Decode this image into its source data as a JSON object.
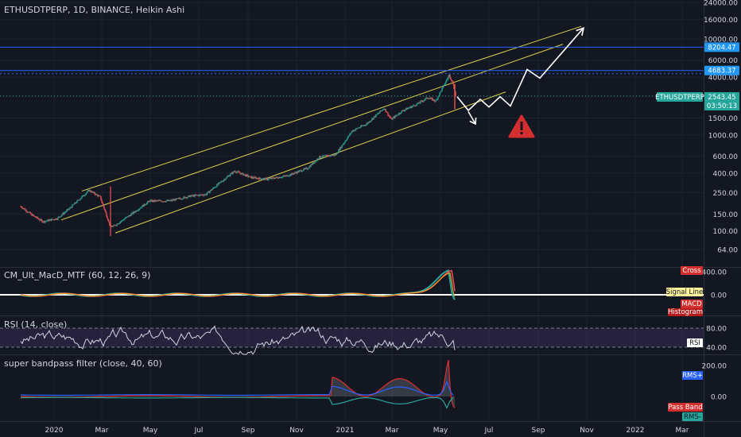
{
  "header": {
    "title": "ETHUSDTPERP, 1D, BINANCE, Heikin Ashi"
  },
  "price_badges": {
    "level_high": "8204.47",
    "level_mid": "4683.37",
    "last_symbol": "ETHUSDTPERP",
    "last_price": "2543.45",
    "countdown": "03:50:13"
  },
  "colors": {
    "background": "#131722",
    "grid": "#1e222d",
    "text": "#d1d4dc",
    "up_candle": "#26a69a",
    "down_candle": "#ef5350",
    "channel_lines": "#e0d24a",
    "level_lines": "#2962ff",
    "badge_blue": "#2196f3",
    "badge_teal": "#26a69a",
    "warning": "#d32f2f",
    "rsi_band": "#7e57c2",
    "rsi_line": "#d1d4dc"
  },
  "x_axis": {
    "labels": [
      "2020",
      "Mar",
      "May",
      "Jul",
      "Sep",
      "Nov",
      "2021",
      "Mar",
      "May",
      "Jul",
      "Sep",
      "Nov",
      "2022",
      "Mar"
    ]
  },
  "panes": {
    "macd": {
      "title": "CM_Ult_MacD_MTF (60, 12, 26, 9)",
      "ticks": [
        "400.00",
        "0.00"
      ],
      "badges": [
        "Cross",
        "Signal Line",
        "MACD",
        "Histogram"
      ]
    },
    "rsi": {
      "title": "RSI (14, close)",
      "ticks": [
        "80.00",
        "40.00"
      ],
      "badge": "RSI"
    },
    "bandpass": {
      "title": "super bandpass filter (close, 40, 60)",
      "ticks": [
        "200.00",
        "0.00"
      ],
      "badges": [
        "RMS+",
        "Pass Band",
        "RMS-"
      ]
    }
  },
  "chart_data": {
    "type": "candlestick",
    "style": "Heikin Ashi",
    "symbol": "ETHUSDTPERP",
    "interval": "1D",
    "exchange": "BINANCE",
    "scale": "log",
    "y_ticks": [
      "24000.00",
      "16000.00",
      "10000.00",
      "6000.00",
      "4000.00",
      "2500.00",
      "1500.00",
      "1000.00",
      "600.00",
      "400.00",
      "250.00",
      "150.00",
      "100.00",
      "64.00"
    ],
    "y_tick_values": [
      24000,
      16000,
      10000,
      6000,
      4000,
      2500,
      1500,
      1000,
      600,
      400,
      250,
      150,
      100,
      64
    ],
    "x_ticks": [
      {
        "label": "2020",
        "date": "2020-01-01"
      },
      {
        "label": "Mar",
        "date": "2020-03-01"
      },
      {
        "label": "May",
        "date": "2020-05-01"
      },
      {
        "label": "Jul",
        "date": "2020-07-01"
      },
      {
        "label": "Sep",
        "date": "2020-09-01"
      },
      {
        "label": "Nov",
        "date": "2020-11-01"
      },
      {
        "label": "2021",
        "date": "2021-01-01"
      },
      {
        "label": "Mar",
        "date": "2021-03-01"
      },
      {
        "label": "May",
        "date": "2021-05-01"
      },
      {
        "label": "Jul",
        "date": "2021-07-01"
      },
      {
        "label": "Sep",
        "date": "2021-09-01"
      },
      {
        "label": "Nov",
        "date": "2021-11-01"
      },
      {
        "label": "2022",
        "date": "2022-01-01"
      },
      {
        "label": "Mar",
        "date": "2022-03-01"
      }
    ],
    "price_path": [
      {
        "date": "2019-11-20",
        "price": 180
      },
      {
        "date": "2019-12-05",
        "price": 145
      },
      {
        "date": "2019-12-18",
        "price": 125
      },
      {
        "date": "2020-01-05",
        "price": 135
      },
      {
        "date": "2020-01-20",
        "price": 170
      },
      {
        "date": "2020-02-14",
        "price": 265
      },
      {
        "date": "2020-02-28",
        "price": 225
      },
      {
        "date": "2020-03-12",
        "price": 110
      },
      {
        "date": "2020-03-16",
        "price": 112
      },
      {
        "date": "2020-04-05",
        "price": 145
      },
      {
        "date": "2020-04-30",
        "price": 205
      },
      {
        "date": "2020-05-25",
        "price": 205
      },
      {
        "date": "2020-06-20",
        "price": 230
      },
      {
        "date": "2020-07-10",
        "price": 240
      },
      {
        "date": "2020-07-25",
        "price": 305
      },
      {
        "date": "2020-08-15",
        "price": 420
      },
      {
        "date": "2020-09-05",
        "price": 360
      },
      {
        "date": "2020-09-25",
        "price": 345
      },
      {
        "date": "2020-10-20",
        "price": 375
      },
      {
        "date": "2020-11-15",
        "price": 450
      },
      {
        "date": "2020-11-30",
        "price": 590
      },
      {
        "date": "2020-12-20",
        "price": 620
      },
      {
        "date": "2021-01-10",
        "price": 1100
      },
      {
        "date": "2021-01-28",
        "price": 1300
      },
      {
        "date": "2021-02-19",
        "price": 1900
      },
      {
        "date": "2021-02-28",
        "price": 1450
      },
      {
        "date": "2021-03-15",
        "price": 1800
      },
      {
        "date": "2021-04-02",
        "price": 2100
      },
      {
        "date": "2021-04-15",
        "price": 2450
      },
      {
        "date": "2021-04-25",
        "price": 2250
      },
      {
        "date": "2021-05-12",
        "price": 4200
      },
      {
        "date": "2021-05-17",
        "price": 3400
      },
      {
        "date": "2021-05-20",
        "price": 2543.45
      }
    ],
    "horizontal_levels": [
      8204.47,
      4683.37,
      2543.45
    ],
    "projection_path": [
      {
        "date": "2021-05-22",
        "price": 2500
      },
      {
        "date": "2021-06-05",
        "price": 1800
      },
      {
        "date": "2021-06-20",
        "price": 2350
      },
      {
        "date": "2021-07-01",
        "price": 1950
      },
      {
        "date": "2021-07-15",
        "price": 2500
      },
      {
        "date": "2021-07-28",
        "price": 2000
      },
      {
        "date": "2021-08-18",
        "price": 4800
      },
      {
        "date": "2021-09-03",
        "price": 3900
      },
      {
        "date": "2021-10-28",
        "price": 13000
      }
    ],
    "alt_arrow": [
      {
        "date": "2021-06-05",
        "price": 1750
      },
      {
        "date": "2021-06-14",
        "price": 1300
      }
    ],
    "channels": [
      {
        "start": {
          "date": "2020-02-05",
          "price": 260
        },
        "end": {
          "date": "2021-10-25",
          "price": 13500
        }
      },
      {
        "start": {
          "date": "2020-01-10",
          "price": 130
        },
        "end": {
          "date": "2021-10-02",
          "price": 8800
        }
      },
      {
        "start": {
          "date": "2020-03-18",
          "price": 95
        },
        "end": {
          "date": "2021-07-22",
          "price": 2800
        }
      }
    ]
  }
}
